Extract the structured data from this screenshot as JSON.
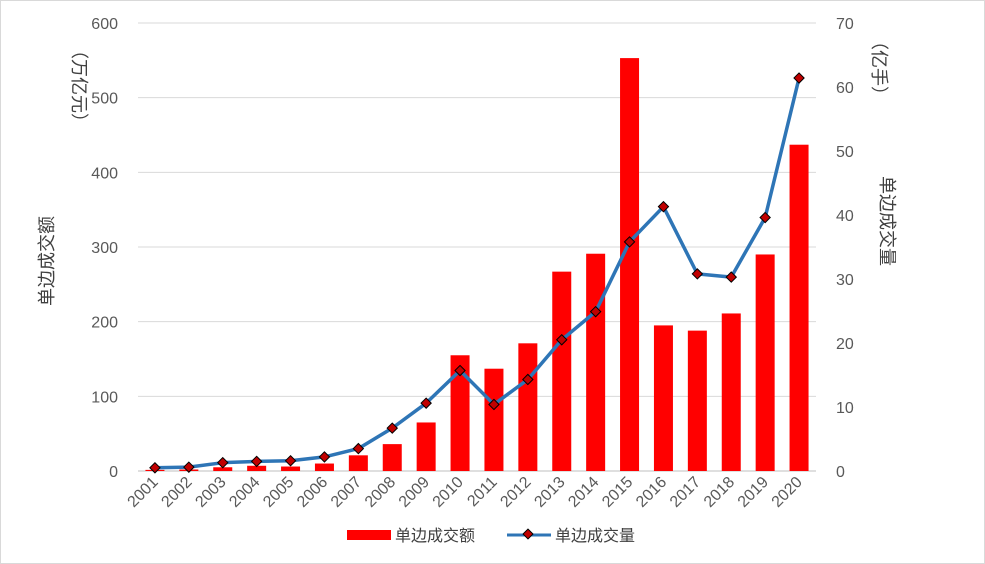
{
  "chart_data": {
    "type": "bar+line",
    "categories": [
      "2001",
      "2002",
      "2003",
      "2004",
      "2005",
      "2006",
      "2007",
      "2008",
      "2009",
      "2010",
      "2011",
      "2012",
      "2013",
      "2014",
      "2015",
      "2016",
      "2017",
      "2018",
      "2019",
      "2020"
    ],
    "series": [
      {
        "name": "单边成交额",
        "type": "bar",
        "axis": "left",
        "color": "#ff0000",
        "values": [
          1.5,
          2,
          5,
          7,
          6,
          10,
          21,
          36,
          65,
          155,
          137,
          171,
          267,
          291,
          553,
          195,
          188,
          211,
          290,
          437
        ]
      },
      {
        "name": "单边成交量",
        "type": "line",
        "axis": "right",
        "color": "#2e75b6",
        "marker_color": "#c00000",
        "values": [
          0.5,
          0.6,
          1.3,
          1.5,
          1.6,
          2.2,
          3.5,
          6.7,
          10.6,
          15.7,
          10.4,
          14.3,
          20.5,
          24.9,
          35.8,
          41.3,
          30.8,
          30.3,
          39.6,
          61.4
        ]
      }
    ],
    "y_left": {
      "label": "单边成交额",
      "unit": "（万亿元）",
      "ylim": [
        0,
        600
      ],
      "ticks": [
        0,
        100,
        200,
        300,
        400,
        500,
        600
      ]
    },
    "y_right": {
      "label": "单边成交量",
      "unit": "（亿手）",
      "ylim": [
        0,
        70
      ],
      "ticks": [
        0,
        10,
        20,
        30,
        40,
        50,
        60,
        70
      ]
    },
    "grid": true,
    "legend": "bottom-center"
  }
}
